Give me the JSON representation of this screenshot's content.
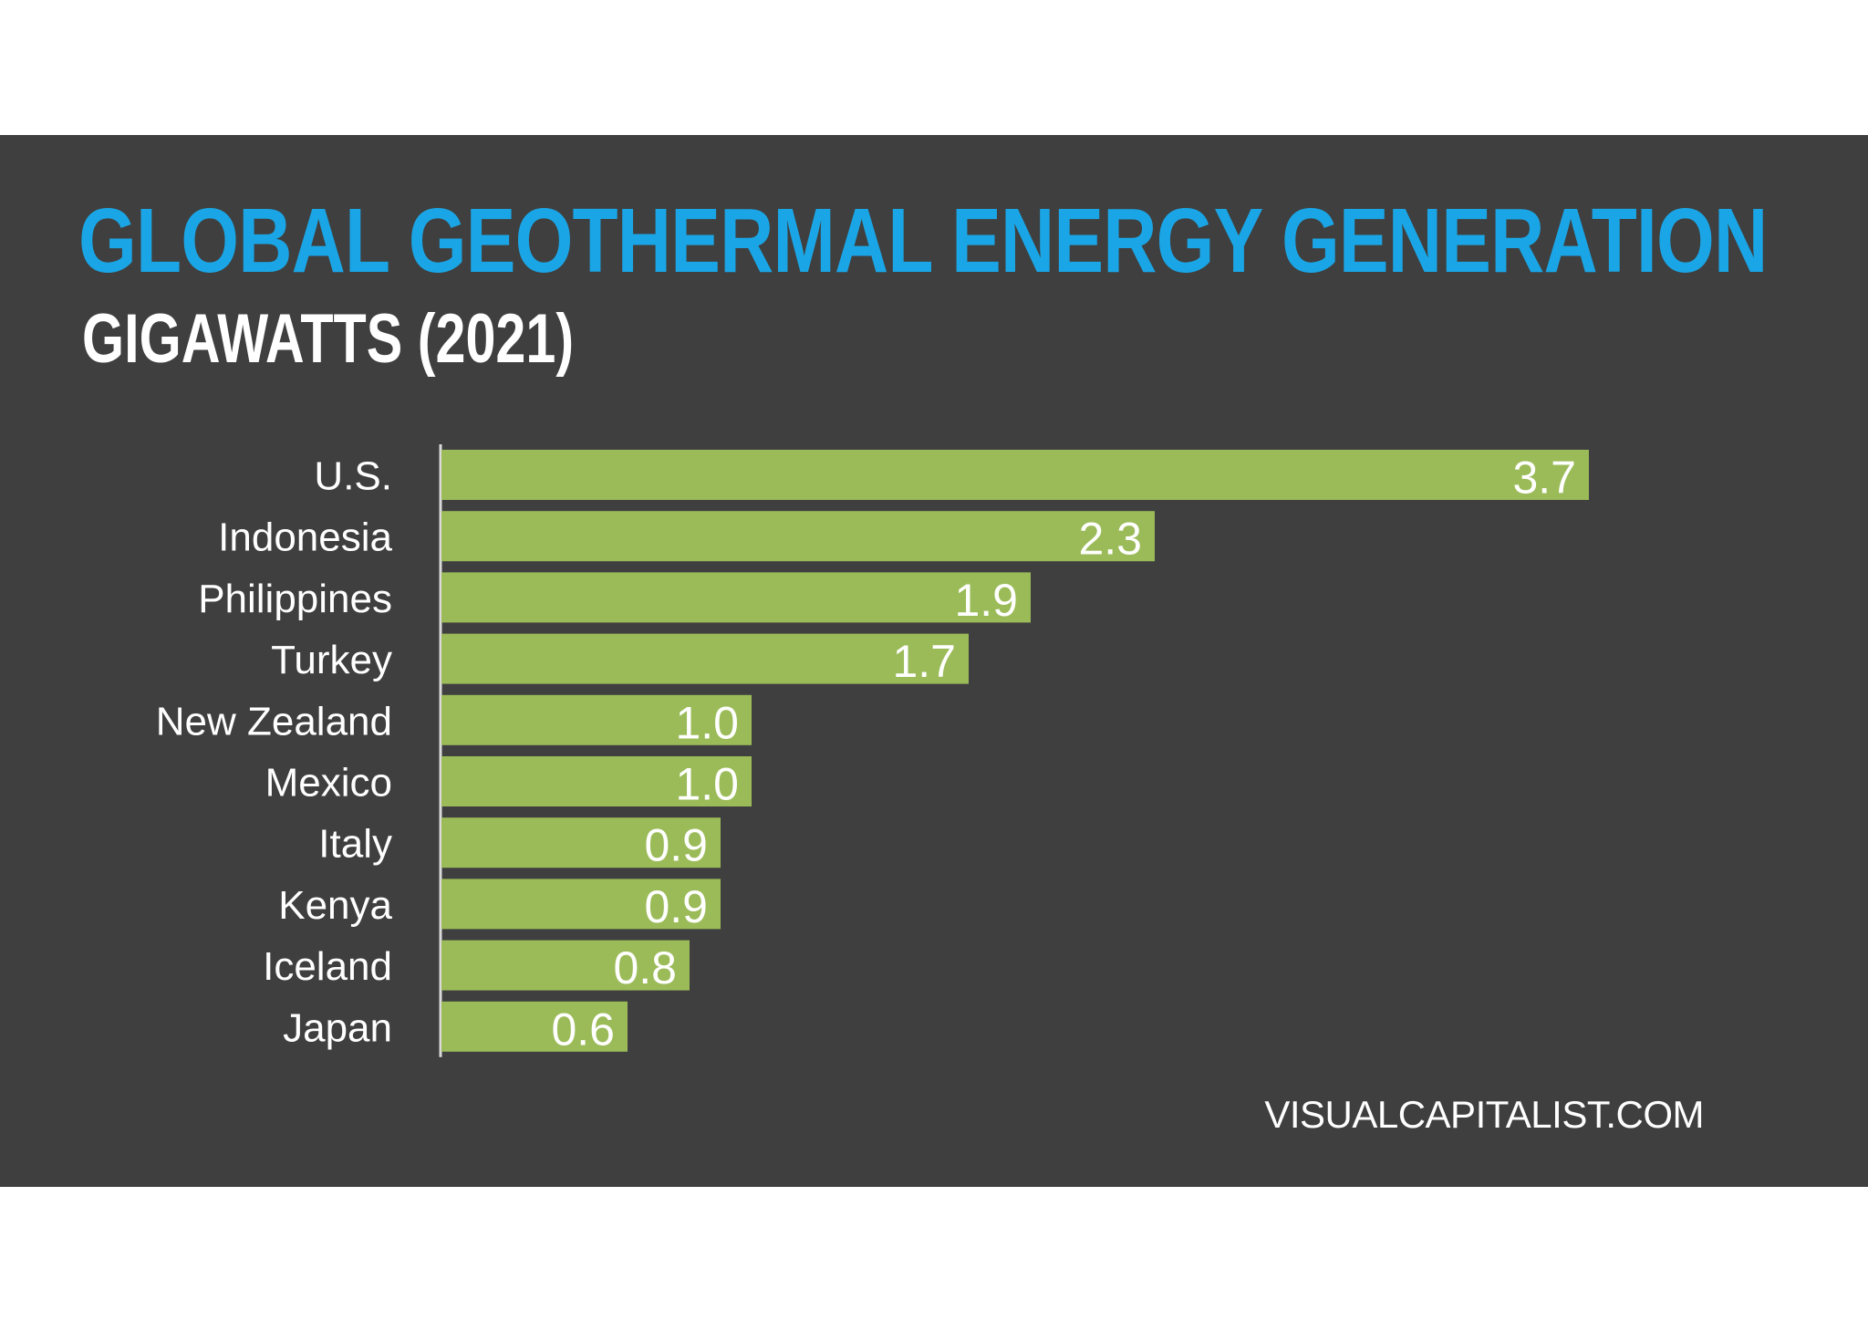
{
  "title": "GLOBAL GEOTHERMAL ENERGY GENERATION",
  "subtitle": "GIGAWATTS (2021)",
  "source": "VISUALCAPITALIST.COM",
  "colors": {
    "background": "#3f3f3f",
    "title": "#1aa6e6",
    "bar": "#9bbb59",
    "text": "#ffffff",
    "axis": "#d9d9d9"
  },
  "chart_data": {
    "type": "bar",
    "orientation": "horizontal",
    "title": "GLOBAL GEOTHERMAL ENERGY GENERATION",
    "subtitle": "GIGAWATTS (2021)",
    "categories": [
      "U.S.",
      "Indonesia",
      "Philippines",
      "Turkey",
      "New Zealand",
      "Mexico",
      "Italy",
      "Kenya",
      "Iceland",
      "Japan"
    ],
    "values": [
      3.7,
      2.3,
      1.9,
      1.7,
      1.0,
      1.0,
      0.9,
      0.9,
      0.8,
      0.6
    ],
    "value_labels": [
      "3.7",
      "2.3",
      "1.9",
      "1.7",
      "1.0",
      "1.0",
      "0.9",
      "0.9",
      "0.8",
      "0.6"
    ],
    "xlabel": "",
    "ylabel": "",
    "xlim": [
      0,
      3.7
    ],
    "grid": false,
    "legend": "none"
  }
}
